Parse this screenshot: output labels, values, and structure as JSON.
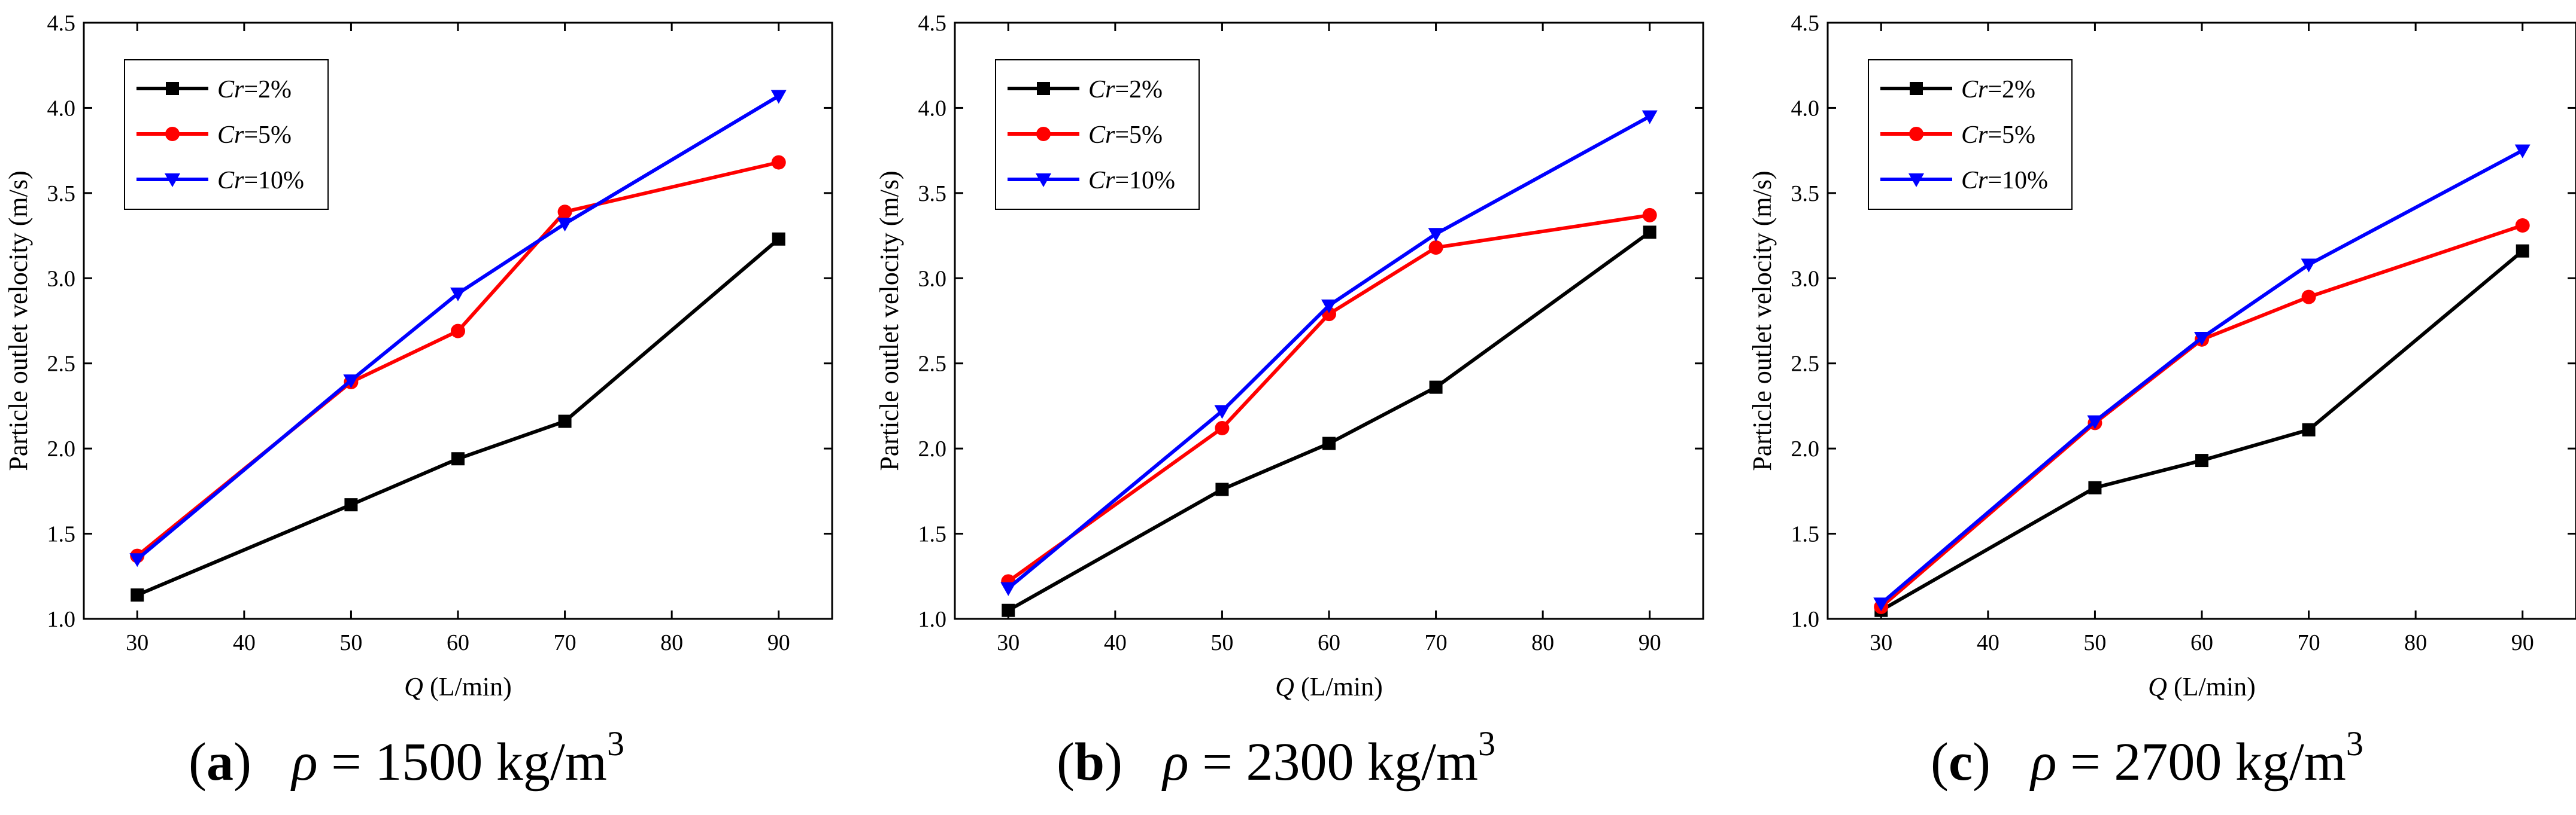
{
  "figure": {
    "background": "#ffffff"
  },
  "chart_data": [
    {
      "type": "line",
      "ylabel": "Particle outlet velocity (m/s)",
      "xlabel_var": "Q",
      "xlabel_unit": " (L/min)",
      "xlim": [
        25,
        95
      ],
      "ylim": [
        1.0,
        4.5
      ],
      "xticks": [
        30,
        40,
        50,
        60,
        70,
        80,
        90
      ],
      "yticks": [
        1.0,
        1.5,
        2.0,
        2.5,
        3.0,
        3.5,
        4.0,
        4.5
      ],
      "x": [
        30,
        50,
        60,
        70,
        90
      ],
      "series": [
        {
          "name_var": "Cr",
          "name_rest": "=2%",
          "color": "#000000",
          "marker": "square",
          "values": [
            1.14,
            1.67,
            1.94,
            2.16,
            3.23
          ]
        },
        {
          "name_var": "Cr",
          "name_rest": "=5%",
          "color": "#ff0000",
          "marker": "circle",
          "values": [
            1.37,
            2.39,
            2.69,
            3.39,
            3.68
          ]
        },
        {
          "name_var": "Cr",
          "name_rest": "=10%",
          "color": "#0000ff",
          "marker": "triangle-down",
          "values": [
            1.35,
            2.4,
            2.91,
            3.32,
            4.07
          ]
        }
      ],
      "legend_position": "top-left",
      "caption": {
        "letter": "a",
        "symbol": "ρ",
        "text": " = 1500 kg/m",
        "sup": "3"
      }
    },
    {
      "type": "line",
      "ylabel": "Particle outlet velocity (m/s)",
      "xlabel_var": "Q",
      "xlabel_unit": " (L/min)",
      "xlim": [
        25,
        95
      ],
      "ylim": [
        1.0,
        4.5
      ],
      "xticks": [
        30,
        40,
        50,
        60,
        70,
        80,
        90
      ],
      "yticks": [
        1.0,
        1.5,
        2.0,
        2.5,
        3.0,
        3.5,
        4.0,
        4.5
      ],
      "x": [
        30,
        50,
        60,
        70,
        90
      ],
      "series": [
        {
          "name_var": "Cr",
          "name_rest": "=2%",
          "color": "#000000",
          "marker": "square",
          "values": [
            1.05,
            1.76,
            2.03,
            2.36,
            3.27
          ]
        },
        {
          "name_var": "Cr",
          "name_rest": "=5%",
          "color": "#ff0000",
          "marker": "circle",
          "values": [
            1.22,
            2.12,
            2.79,
            3.18,
            3.37
          ]
        },
        {
          "name_var": "Cr",
          "name_rest": "=10%",
          "color": "#0000ff",
          "marker": "triangle-down",
          "values": [
            1.18,
            2.22,
            2.84,
            3.26,
            3.95
          ]
        }
      ],
      "legend_position": "top-left",
      "caption": {
        "letter": "b",
        "symbol": "ρ",
        "text": " = 2300 kg/m",
        "sup": "3"
      }
    },
    {
      "type": "line",
      "ylabel": "Particle outlet velocity (m/s)",
      "xlabel_var": "Q",
      "xlabel_unit": " (L/min)",
      "xlim": [
        25,
        95
      ],
      "ylim": [
        1.0,
        4.5
      ],
      "xticks": [
        30,
        40,
        50,
        60,
        70,
        80,
        90
      ],
      "yticks": [
        1.0,
        1.5,
        2.0,
        2.5,
        3.0,
        3.5,
        4.0,
        4.5
      ],
      "x": [
        30,
        50,
        60,
        70,
        90
      ],
      "series": [
        {
          "name_var": "Cr",
          "name_rest": "=2%",
          "color": "#000000",
          "marker": "square",
          "values": [
            1.05,
            1.77,
            1.93,
            2.11,
            3.16
          ]
        },
        {
          "name_var": "Cr",
          "name_rest": "=5%",
          "color": "#ff0000",
          "marker": "circle",
          "values": [
            1.07,
            2.15,
            2.64,
            2.89,
            3.31
          ]
        },
        {
          "name_var": "Cr",
          "name_rest": "=10%",
          "color": "#0000ff",
          "marker": "triangle-down",
          "values": [
            1.09,
            2.16,
            2.65,
            3.08,
            3.75
          ]
        }
      ],
      "legend_position": "top-left",
      "caption": {
        "letter": "c",
        "symbol": "ρ",
        "text": " = 2700 kg/m",
        "sup": "3"
      }
    }
  ]
}
